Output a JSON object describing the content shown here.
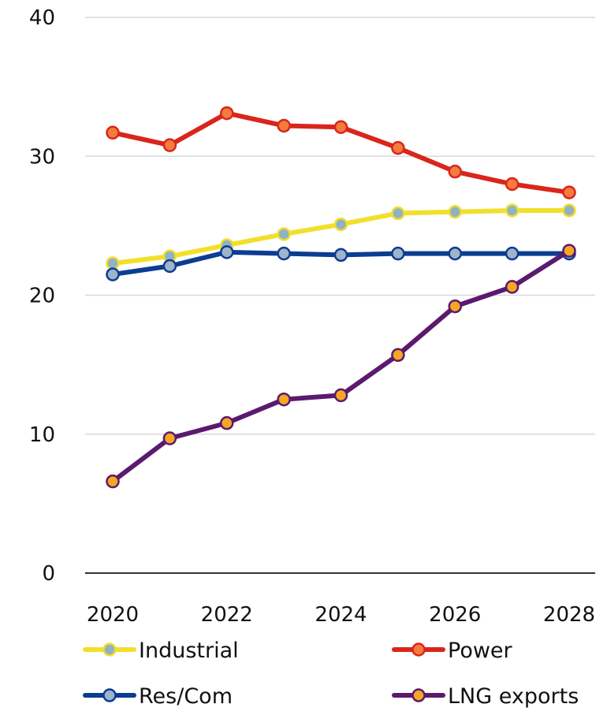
{
  "chart_data": {
    "type": "line",
    "title": "",
    "xlabel": "",
    "ylabel": "",
    "x": [
      2020,
      2021,
      2022,
      2023,
      2024,
      2025,
      2026,
      2027,
      2028
    ],
    "x_tick_labels": [
      "2020",
      "2022",
      "2024",
      "2026",
      "2028"
    ],
    "x_tick_values": [
      2020,
      2022,
      2024,
      2026,
      2028
    ],
    "y_tick_labels": [
      "0",
      "10",
      "20",
      "30",
      "40"
    ],
    "y_tick_values": [
      0,
      10,
      20,
      30,
      40
    ],
    "ylim": [
      0,
      40
    ],
    "xlim": [
      2020,
      2028
    ],
    "grid": "horizontal",
    "legend_position": "bottom",
    "series": [
      {
        "name": "Industrial",
        "color": "#f2df2a",
        "marker_color": "#8fb3c4",
        "values": [
          22.3,
          22.8,
          23.6,
          24.4,
          25.1,
          25.9,
          26.0,
          26.1,
          26.1
        ]
      },
      {
        "name": "Power",
        "color": "#d9261c",
        "marker_color": "#f47c3c",
        "values": [
          31.7,
          30.8,
          33.1,
          32.2,
          32.1,
          30.6,
          28.9,
          28.0,
          27.4
        ]
      },
      {
        "name": "Res/Com",
        "color": "#0b3d91",
        "marker_color": "#9fb4c8",
        "values": [
          21.5,
          22.1,
          23.1,
          23.0,
          22.9,
          23.0,
          23.0,
          23.0,
          23.0
        ]
      },
      {
        "name": "LNG exports",
        "color": "#5b1a6e",
        "marker_color": "#f5a623",
        "values": [
          6.6,
          9.7,
          10.8,
          12.5,
          12.8,
          15.7,
          19.2,
          20.6,
          23.2
        ]
      }
    ]
  }
}
